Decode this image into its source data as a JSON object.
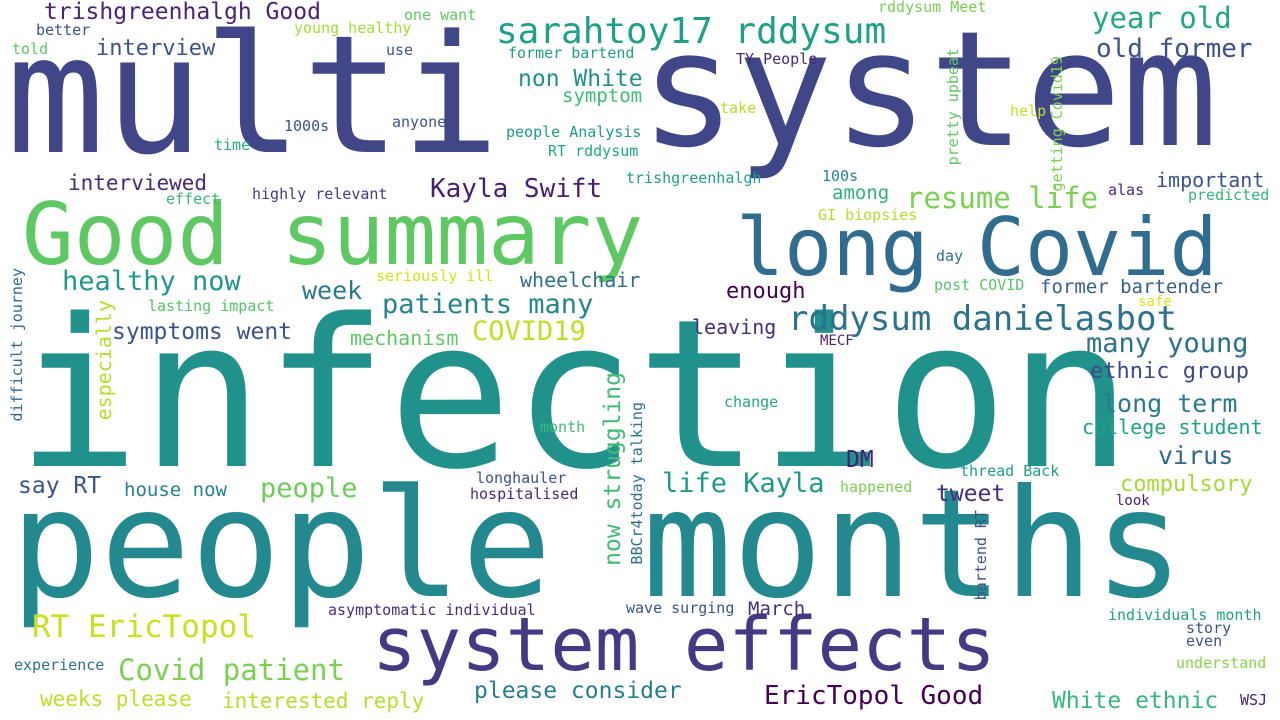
{
  "words": [
    {
      "text": "multi",
      "color": "#404688"
    },
    {
      "text": "system",
      "color": "#3f4788"
    },
    {
      "text": "infection",
      "color": "#21918c"
    },
    {
      "text": "people months",
      "color": "#23898e"
    },
    {
      "text": "Good summary",
      "color": "#5ec962"
    },
    {
      "text": "long Covid",
      "color": "#2f6c8e"
    },
    {
      "text": "system effects",
      "color": "#443983"
    },
    {
      "text": "sarahtoy17 rddysum",
      "color": "#1fa088"
    },
    {
      "text": "rddysum danielasbot",
      "color": "#2c728e"
    },
    {
      "text": "trishgreenhalgh Good",
      "color": "#482475"
    },
    {
      "text": "year old",
      "color": "#22a785"
    },
    {
      "text": "old former",
      "color": "#3b528b"
    },
    {
      "text": "interview",
      "color": "#3b528b"
    },
    {
      "text": "non White",
      "color": "#21918c"
    },
    {
      "text": "symptom",
      "color": "#3dbc74"
    },
    {
      "text": "Kayla Swift",
      "color": "#481f70"
    },
    {
      "text": "resume life",
      "color": "#7ad151"
    },
    {
      "text": "interviewed",
      "color": "#482878"
    },
    {
      "text": "healthy now",
      "color": "#1f978b"
    },
    {
      "text": "week",
      "color": "#2a788e"
    },
    {
      "text": "patients many",
      "color": "#25858e"
    },
    {
      "text": "symptoms went",
      "color": "#3b528b"
    },
    {
      "text": "COVID19",
      "color": "#bddf26"
    },
    {
      "text": "mechanism",
      "color": "#5ec962"
    },
    {
      "text": "many young",
      "color": "#2c728e"
    },
    {
      "text": "ethnic group",
      "color": "#3e4989"
    },
    {
      "text": "long term",
      "color": "#2a788e"
    },
    {
      "text": "college student",
      "color": "#1fa187"
    },
    {
      "text": "virus",
      "color": "#31688e"
    },
    {
      "text": "compulsory",
      "color": "#a5db36"
    },
    {
      "text": "tweet",
      "color": "#472d7b"
    },
    {
      "text": "life Kayla",
      "color": "#1f9a8a"
    },
    {
      "text": "DM",
      "color": "#482173"
    },
    {
      "text": "people",
      "color": "#6ccd5a"
    },
    {
      "text": "say RT",
      "color": "#3b528b"
    },
    {
      "text": "house now",
      "color": "#26828e"
    },
    {
      "text": "RT EricTopol",
      "color": "#c8e020"
    },
    {
      "text": "Covid patient",
      "color": "#7ad151"
    },
    {
      "text": "weeks please",
      "color": "#bddf26"
    },
    {
      "text": "interested reply",
      "color": "#b5de2b"
    },
    {
      "text": "please consider",
      "color": "#277f8e"
    },
    {
      "text": "EricTopol Good",
      "color": "#440154"
    },
    {
      "text": "White ethnic",
      "color": "#35b779"
    },
    {
      "text": "asymptomatic individual",
      "color": "#472c7a"
    },
    {
      "text": "wave surging",
      "color": "#3a538b"
    },
    {
      "text": "March",
      "color": "#46327e"
    },
    {
      "text": "individuals month",
      "color": "#1f9e89"
    },
    {
      "text": "story",
      "color": "#39568c"
    },
    {
      "text": "even",
      "color": "#3b528b"
    },
    {
      "text": "understand",
      "color": "#86d549"
    },
    {
      "text": "WSJ",
      "color": "#482475"
    },
    {
      "text": "experience",
      "color": "#2d708e"
    },
    {
      "text": "enough",
      "color": "#440154"
    },
    {
      "text": "leaving",
      "color": "#472d7b"
    },
    {
      "text": "wheelchair",
      "color": "#2d708e"
    },
    {
      "text": "former bartender",
      "color": "#355f8d"
    },
    {
      "text": "among",
      "color": "#2db27d"
    },
    {
      "text": "important",
      "color": "#3b528b"
    },
    {
      "text": "trishgreenhalgh",
      "color": "#1fa088"
    },
    {
      "text": "100s",
      "color": "#26828e"
    },
    {
      "text": "alas",
      "color": "#482878"
    },
    {
      "text": "predicted",
      "color": "#35b779"
    },
    {
      "text": "highly relevant",
      "color": "#443983"
    },
    {
      "text": "effect",
      "color": "#35b779"
    },
    {
      "text": "GI biopsies",
      "color": "#b5de2b"
    },
    {
      "text": "day",
      "color": "#2c728e"
    },
    {
      "text": "post COVID",
      "color": "#54c568"
    },
    {
      "text": "safe",
      "color": "#dde318"
    },
    {
      "text": "seriously ill",
      "color": "#d2e21b"
    },
    {
      "text": "lasting impact",
      "color": "#54c568"
    },
    {
      "text": "MECF",
      "color": "#482475"
    },
    {
      "text": "change",
      "color": "#22a785"
    },
    {
      "text": "month",
      "color": "#3dbc74"
    },
    {
      "text": "thread Back",
      "color": "#1f9e89"
    },
    {
      "text": "happened",
      "color": "#7ad151"
    },
    {
      "text": "look",
      "color": "#482173"
    },
    {
      "text": "longhauler",
      "color": "#3b528b"
    },
    {
      "text": "hospitalised",
      "color": "#482878"
    },
    {
      "text": "people Analysis",
      "color": "#1f9a8a"
    },
    {
      "text": "RT rddysum",
      "color": "#22a785"
    },
    {
      "text": "TY People",
      "color": "#482878"
    },
    {
      "text": "anyone",
      "color": "#3b528b"
    },
    {
      "text": "1000s",
      "color": "#3b528b"
    },
    {
      "text": "take",
      "color": "#b5de2b"
    },
    {
      "text": "help",
      "color": "#c2df23"
    },
    {
      "text": "former bartend",
      "color": "#1f9e89"
    },
    {
      "text": "one want",
      "color": "#5ec962"
    },
    {
      "text": "rddysum Meet",
      "color": "#7ad151"
    },
    {
      "text": "young healthy",
      "color": "#a5db36"
    },
    {
      "text": "use",
      "color": "#3b528b"
    },
    {
      "text": "better",
      "color": "#3b528b"
    },
    {
      "text": "told",
      "color": "#5ec962"
    },
    {
      "text": "time",
      "color": "#26ad81"
    },
    {
      "text": "especially",
      "color": "#b5de2b"
    },
    {
      "text": "difficult journey",
      "color": "#306a8e"
    },
    {
      "text": "now struggling",
      "color": "#3dbc74"
    },
    {
      "text": "BBCr4today talking",
      "color": "#2c728e"
    },
    {
      "text": "pretty upbeat",
      "color": "#5ec962"
    },
    {
      "text": "getting Covid19",
      "color": "#7ad151"
    },
    {
      "text": "bartend RT",
      "color": "#3b528b"
    }
  ]
}
